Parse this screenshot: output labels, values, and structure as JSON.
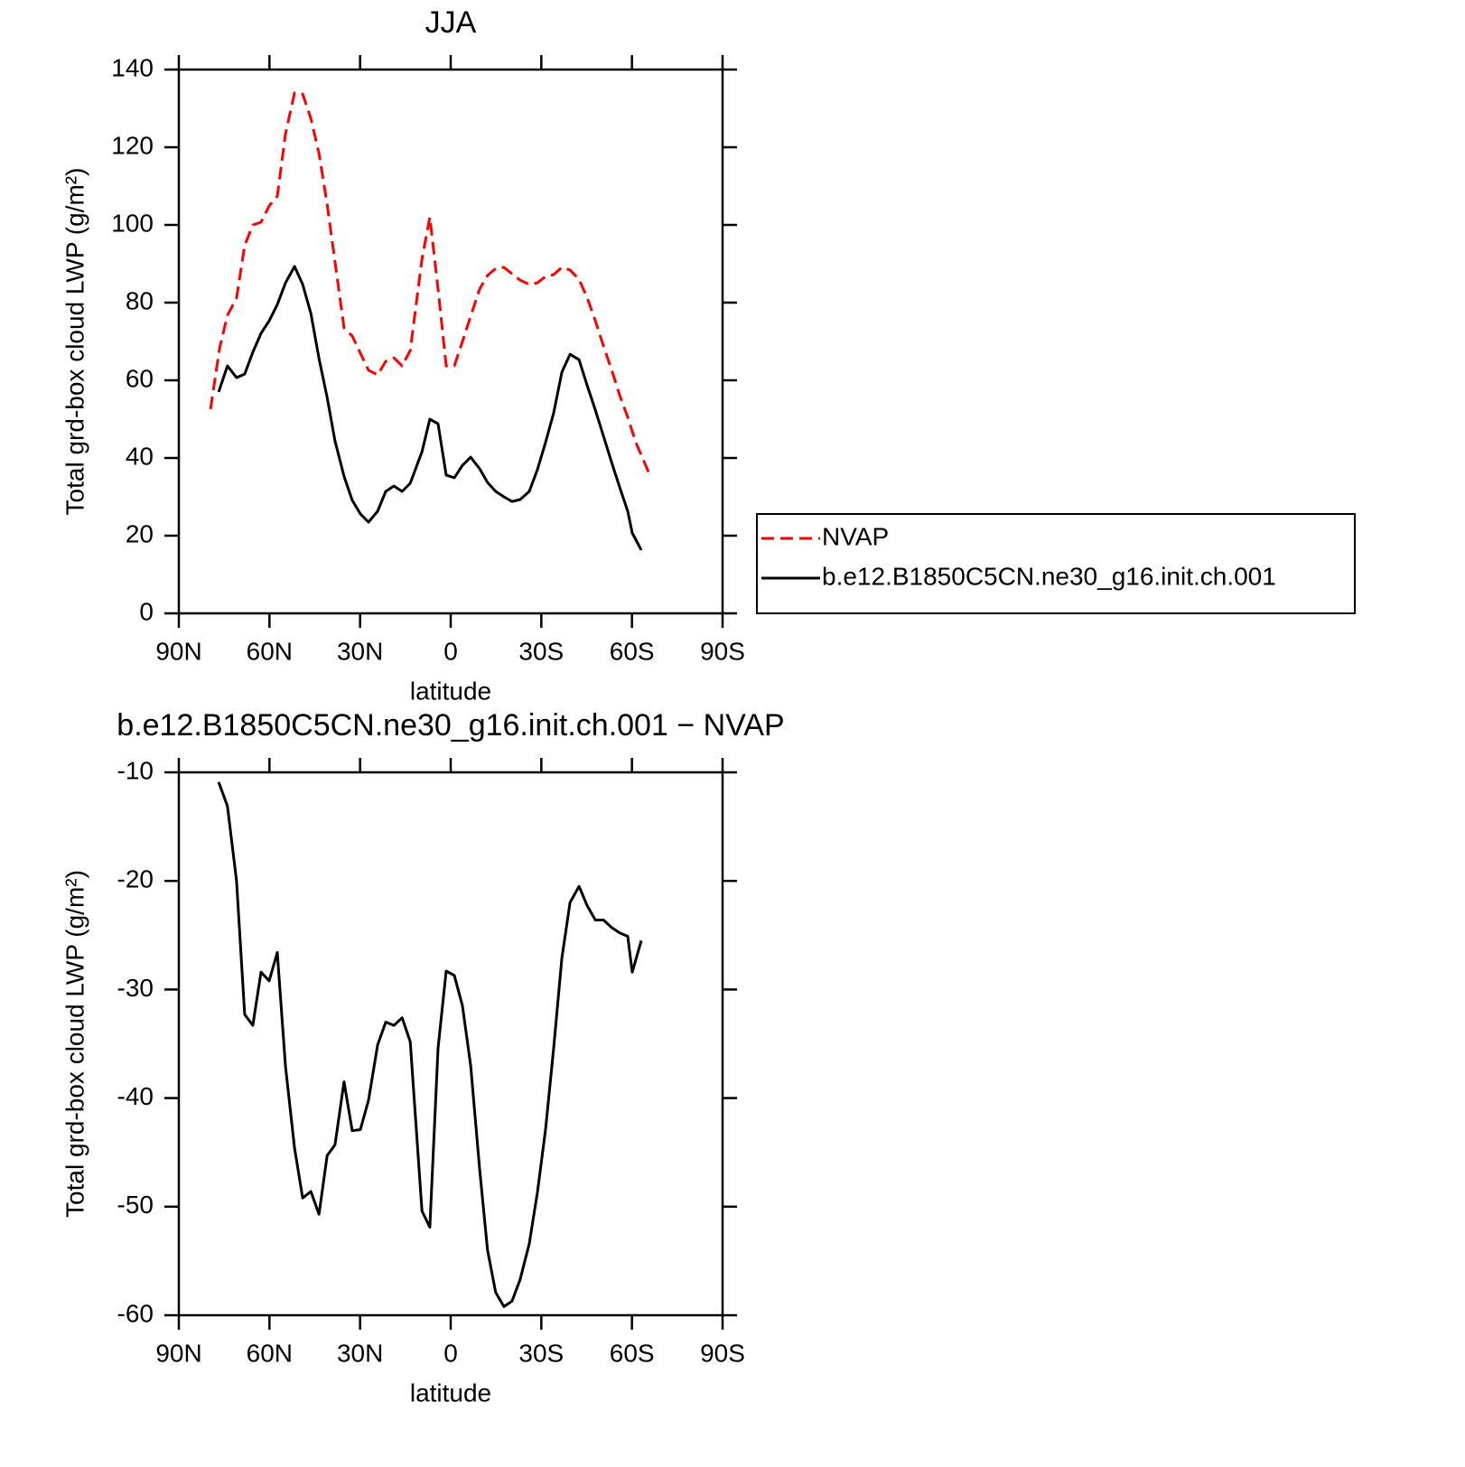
{
  "chart_data": [
    {
      "type": "line",
      "title": "JJA",
      "xlabel": "latitude",
      "ylabel": "Total grd-box cloud LWP (g/m²)",
      "xlim": [
        90,
        -90
      ],
      "xticks": [
        {
          "value": 90,
          "label": "90N"
        },
        {
          "value": 60,
          "label": "60N"
        },
        {
          "value": 30,
          "label": "30N"
        },
        0,
        {
          "value": -30,
          "label": "30S"
        },
        {
          "value": -60,
          "label": "60S"
        },
        {
          "value": -90,
          "label": "90S"
        }
      ],
      "ylim": [
        0,
        140
      ],
      "yticks": [
        0,
        20,
        40,
        60,
        80,
        100,
        120,
        140
      ],
      "legend": "right",
      "series": [
        {
          "name": "NVAP",
          "color": "#ff0000",
          "line_style": "dashed",
          "x": [
            79.5,
            76.5,
            73.9,
            70.9,
            68.2,
            65.5,
            62.8,
            60.1,
            57.4,
            54.7,
            51.7,
            49,
            46.3,
            43.6,
            40.9,
            38.3,
            35.3,
            32.6,
            29.9,
            27.2,
            24.2,
            21.5,
            18.8,
            16.1,
            13.4,
            9.5,
            6.9,
            4.2,
            1.5,
            -1.2,
            -3.9,
            -6.6,
            -9.6,
            -12.2,
            -14.9,
            -17.6,
            -20.3,
            -23,
            -26,
            -28.7,
            -31.4,
            -34.1,
            -36.8,
            -39.5,
            -42.5,
            -45.2,
            -47.9,
            -50.6,
            -53.3,
            -56,
            -58.6,
            -61.3,
            -65.8
          ],
          "values": [
            52.6,
            68.4,
            76.7,
            81.2,
            94.7,
            100,
            100.7,
            104.9,
            107.4,
            123.5,
            134,
            133.7,
            127.4,
            118.4,
            105.3,
            90.5,
            73.5,
            71.4,
            67,
            62.6,
            61.4,
            64.9,
            65.8,
            63.7,
            67.7,
            91.2,
            102,
            83.5,
            63.7,
            63.7,
            70,
            76.5,
            83.5,
            87,
            88.8,
            89.1,
            87.4,
            85.8,
            84.7,
            85.1,
            86.7,
            87.2,
            89.1,
            88.4,
            86,
            81.2,
            75.3,
            68.8,
            62.6,
            56,
            50.5,
            44,
            35.8
          ]
        },
        {
          "name": "b.e12.B1850C5CN.ne30_g16.init.ch.001",
          "color": "#000000",
          "line_style": "solid",
          "x": [
            76.8,
            73.9,
            70.9,
            68.2,
            65.5,
            62.8,
            60.1,
            57.4,
            54.7,
            51.7,
            49,
            46.3,
            43.6,
            40.9,
            38.3,
            35.3,
            32.6,
            29.9,
            27.2,
            24.2,
            21.5,
            18.8,
            16.1,
            13.4,
            9.5,
            6.9,
            4.2,
            1.5,
            -1.2,
            -3.9,
            -6.6,
            -9.6,
            -12.2,
            -14.9,
            -17.6,
            -20.3,
            -23,
            -26,
            -28.7,
            -31.4,
            -34.1,
            -36.8,
            -39.5,
            -42.5,
            -45.2,
            -47.9,
            -50.6,
            -53.3,
            -56,
            -58.6,
            -60.1,
            -63.1
          ],
          "values": [
            57,
            63.7,
            60.7,
            61.6,
            67.2,
            72.1,
            75.3,
            79.5,
            85.1,
            89.3,
            84.7,
            77.2,
            65.6,
            55.6,
            44.4,
            35.3,
            29.1,
            25.6,
            23.5,
            26.3,
            31.4,
            32.8,
            31.4,
            33.5,
            41.6,
            50,
            48.8,
            35.6,
            34.9,
            38.1,
            40.2,
            37.2,
            33.7,
            31.4,
            30,
            28.8,
            29.3,
            31.4,
            37,
            44,
            51.6,
            62.1,
            66.7,
            65.3,
            58.6,
            52.3,
            45.6,
            38.8,
            32.3,
            26.3,
            20.7,
            16.3
          ]
        }
      ]
    },
    {
      "type": "line",
      "title": "b.e12.B1850C5CN.ne30_g16.init.ch.001 − NVAP",
      "xlabel": "latitude",
      "ylabel": "Total grd-box cloud LWP (g/m²)",
      "xlim": [
        90,
        -90
      ],
      "xticks": [
        {
          "value": 90,
          "label": "90N"
        },
        {
          "value": 60,
          "label": "60N"
        },
        {
          "value": 30,
          "label": "30N"
        },
        0,
        {
          "value": -30,
          "label": "30S"
        },
        {
          "value": -60,
          "label": "60S"
        },
        {
          "value": -90,
          "label": "90S"
        }
      ],
      "ylim": [
        -60,
        -10
      ],
      "yticks": [
        -60,
        -50,
        -40,
        -30,
        -20,
        -10
      ],
      "series": [
        {
          "color": "#000000",
          "line_style": "solid",
          "x": [
            76.8,
            73.9,
            70.9,
            68.2,
            65.5,
            62.8,
            60.1,
            57.4,
            54.7,
            51.7,
            49,
            46.3,
            43.6,
            40.9,
            38.3,
            35.3,
            32.6,
            29.9,
            27.2,
            24.2,
            21.5,
            18.8,
            16.1,
            13.4,
            9.5,
            6.9,
            4.2,
            1.5,
            -1.2,
            -3.9,
            -6.6,
            -9.6,
            -12.2,
            -14.9,
            -17.6,
            -20.3,
            -23,
            -26,
            -28.7,
            -31.4,
            -34.1,
            -36.8,
            -39.5,
            -42.5,
            -45.2,
            -47.9,
            -50.6,
            -53.3,
            -56,
            -58.6,
            -60.1,
            -63.1
          ],
          "values": [
            -10.9,
            -13.1,
            -20,
            -32.3,
            -33.3,
            -28.4,
            -29.2,
            -26.6,
            -37.1,
            -44.6,
            -49.2,
            -48.6,
            -50.7,
            -45.3,
            -44.3,
            -38.5,
            -43,
            -42.9,
            -40.2,
            -35.1,
            -33,
            -33.3,
            -32.6,
            -34.8,
            -50.4,
            -51.9,
            -35.4,
            -28.3,
            -28.7,
            -31.5,
            -37,
            -46.6,
            -54,
            -57.9,
            -59.2,
            -58.7,
            -56.7,
            -53.4,
            -48.7,
            -42.9,
            -35.4,
            -27.1,
            -22,
            -20.5,
            -22.3,
            -23.6,
            -23.6,
            -24.3,
            -24.8,
            -25.1,
            -28.4,
            -25.5
          ]
        }
      ]
    }
  ]
}
